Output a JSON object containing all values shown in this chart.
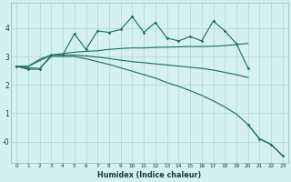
{
  "xlabel": "Humidex (Indice chaleur)",
  "bg_color": "#d4f0f0",
  "grid_color": "#aed6d6",
  "line_color": "#1a6b60",
  "x": [
    0,
    1,
    2,
    3,
    4,
    5,
    6,
    7,
    8,
    9,
    10,
    11,
    12,
    13,
    14,
    15,
    16,
    17,
    18,
    19,
    20,
    21,
    22,
    23
  ],
  "line1": [
    2.65,
    2.55,
    2.55,
    3.05,
    3.05,
    3.8,
    3.25,
    3.9,
    3.85,
    3.95,
    4.4,
    3.85,
    4.2,
    3.65,
    3.55,
    3.7,
    3.55,
    4.25,
    3.9,
    3.45,
    2.6,
    null,
    null,
    null
  ],
  "line2": [
    2.65,
    2.65,
    2.9,
    3.05,
    3.1,
    3.15,
    3.18,
    3.2,
    3.25,
    3.28,
    3.3,
    3.3,
    3.32,
    3.33,
    3.34,
    3.35,
    3.35,
    3.36,
    3.38,
    3.42,
    3.46,
    null,
    null,
    null
  ],
  "line3": [
    2.65,
    2.65,
    2.85,
    3.05,
    3.05,
    3.05,
    3.02,
    2.98,
    2.93,
    2.87,
    2.82,
    2.78,
    2.74,
    2.7,
    2.66,
    2.62,
    2.58,
    2.52,
    2.44,
    2.36,
    2.26,
    null,
    null,
    null
  ],
  "line4": [
    2.65,
    2.6,
    2.58,
    3.0,
    3.0,
    3.0,
    2.92,
    2.82,
    2.72,
    2.6,
    2.48,
    2.36,
    2.24,
    2.08,
    1.95,
    1.8,
    1.63,
    1.44,
    1.22,
    0.97,
    0.6,
    0.1,
    -0.1,
    -0.5
  ],
  "xtick_labels": [
    "0",
    "1",
    "2",
    "3",
    "4",
    "5",
    "6",
    "7",
    "8",
    "9",
    "10",
    "11",
    "12",
    "13",
    "14",
    "15",
    "16",
    "17",
    "18",
    "19",
    "20",
    "21",
    "22",
    "23"
  ],
  "ytick_labels": [
    "-0",
    "1",
    "2",
    "3",
    "4"
  ],
  "ytick_values": [
    0,
    1,
    2,
    3,
    4
  ],
  "ylim": [
    -0.75,
    4.9
  ],
  "xlim": [
    -0.5,
    23.5
  ]
}
